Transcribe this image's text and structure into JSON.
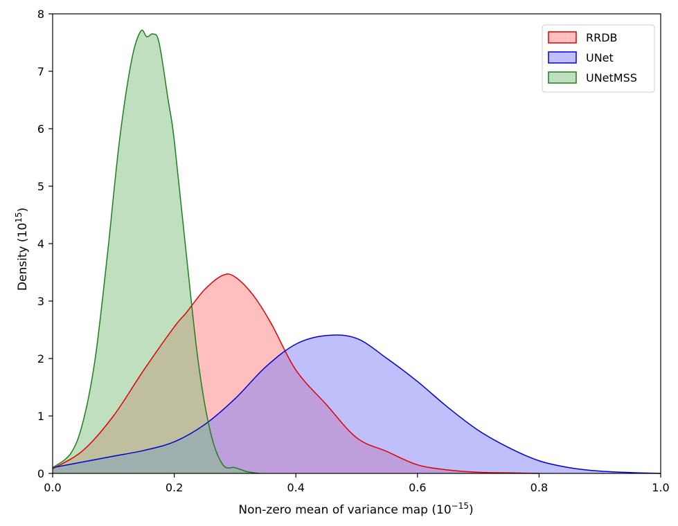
{
  "chart_data": {
    "type": "area",
    "title": "",
    "xlabel": "Non-zero mean of variance map (10",
    "xlabel_exp": "−15",
    "xlabel_tail": ")",
    "ylabel": "Density (10",
    "ylabel_exp": "15",
    "ylabel_tail": ")",
    "xlim": [
      0.0,
      1.0
    ],
    "ylim": [
      0,
      8
    ],
    "xticks": [
      0.0,
      0.2,
      0.4,
      0.6,
      0.8,
      1.0
    ],
    "xtick_labels": [
      "0.0",
      "0.2",
      "0.4",
      "0.6",
      "0.8",
      "1.0"
    ],
    "yticks": [
      0,
      1,
      2,
      3,
      4,
      5,
      6,
      7,
      8
    ],
    "ytick_labels": [
      "0",
      "1",
      "2",
      "3",
      "4",
      "5",
      "6",
      "7",
      "8"
    ],
    "legend_position": "top-right",
    "series": [
      {
        "name": "RRDB",
        "line_color": "#dd0000",
        "fill_color": "#ff8080",
        "fill_opacity": 0.5,
        "x": [
          0.0,
          0.05,
          0.1,
          0.15,
          0.2,
          0.22,
          0.25,
          0.28,
          0.3,
          0.33,
          0.36,
          0.4,
          0.45,
          0.5,
          0.55,
          0.6,
          0.65,
          0.7,
          0.75,
          0.8
        ],
        "y": [
          0.08,
          0.4,
          1.0,
          1.8,
          2.55,
          2.8,
          3.2,
          3.45,
          3.42,
          3.1,
          2.6,
          1.8,
          1.2,
          0.62,
          0.38,
          0.15,
          0.06,
          0.02,
          0.01,
          0.0
        ]
      },
      {
        "name": "UNet",
        "line_color": "#0000cc",
        "fill_color": "#7f7ff7",
        "fill_opacity": 0.5,
        "x": [
          0.0,
          0.05,
          0.1,
          0.15,
          0.2,
          0.25,
          0.3,
          0.35,
          0.4,
          0.45,
          0.5,
          0.55,
          0.6,
          0.65,
          0.7,
          0.75,
          0.8,
          0.85,
          0.9,
          0.95,
          1.0
        ],
        "y": [
          0.1,
          0.2,
          0.3,
          0.4,
          0.55,
          0.85,
          1.3,
          1.85,
          2.25,
          2.4,
          2.35,
          2.0,
          1.6,
          1.15,
          0.75,
          0.45,
          0.22,
          0.1,
          0.04,
          0.015,
          0.0
        ]
      },
      {
        "name": "UNetMSS",
        "line_color": "#1a7f1a",
        "fill_color": "#7fbf7f",
        "fill_opacity": 0.5,
        "x": [
          0.0,
          0.03,
          0.05,
          0.07,
          0.09,
          0.11,
          0.13,
          0.145,
          0.155,
          0.165,
          0.175,
          0.19,
          0.2,
          0.22,
          0.24,
          0.26,
          0.28,
          0.3,
          0.32,
          0.34
        ],
        "y": [
          0.1,
          0.35,
          0.9,
          2.0,
          3.8,
          5.8,
          7.2,
          7.7,
          7.6,
          7.65,
          7.5,
          6.5,
          5.8,
          3.8,
          1.9,
          0.7,
          0.15,
          0.1,
          0.03,
          0.0
        ]
      }
    ]
  }
}
